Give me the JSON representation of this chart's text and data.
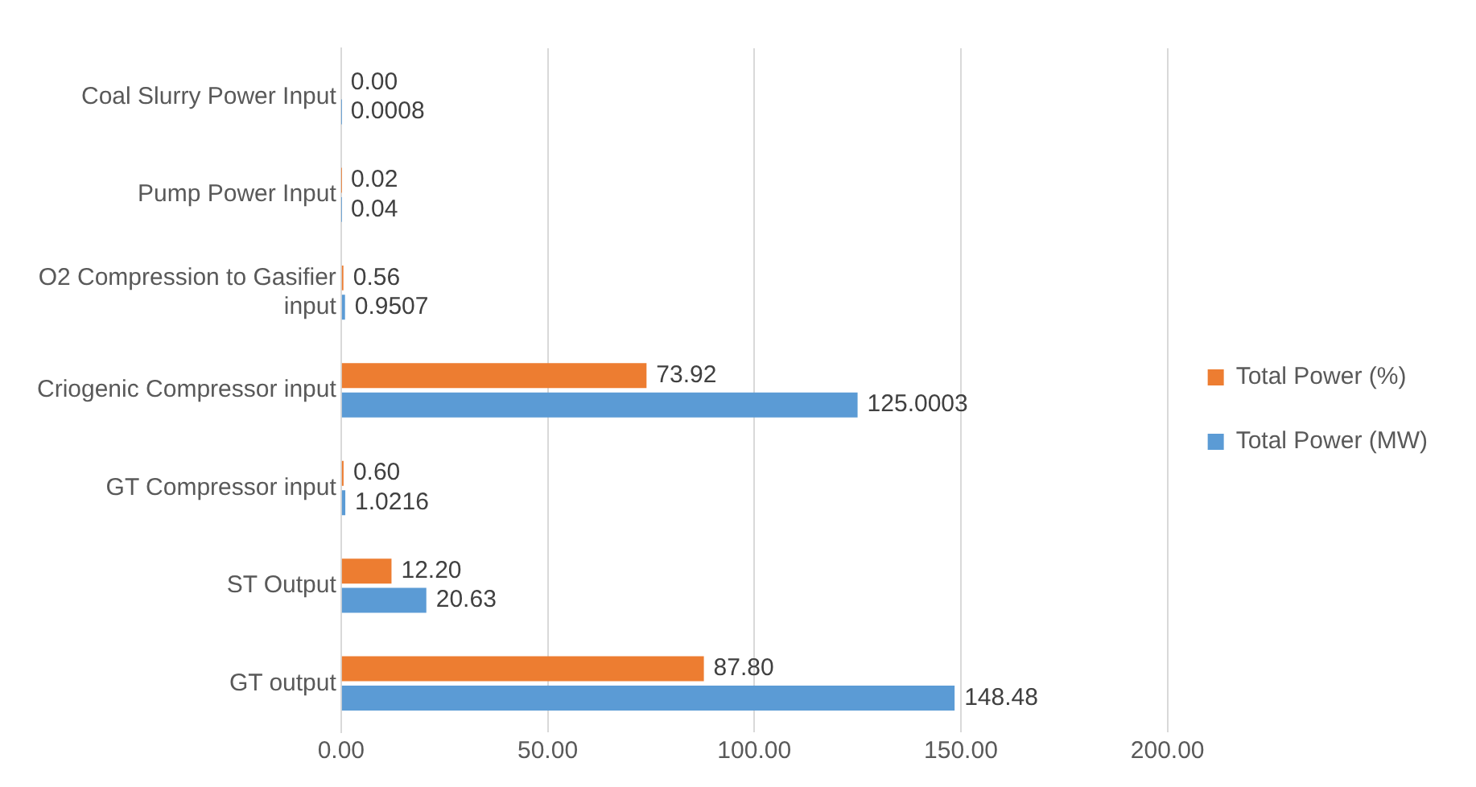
{
  "chart_data": {
    "type": "bar",
    "orientation": "horizontal",
    "categories": [
      "Coal Slurry Power Input",
      "Pump Power Input",
      "O2 Compression to Gasifier input",
      "Criogenic Compressor input",
      "GT Compressor input",
      "ST Output",
      "GT output"
    ],
    "series": [
      {
        "name": "Total Power (%)",
        "color": "#ed7d31",
        "values": [
          0.0,
          0.02,
          0.56,
          73.92,
          0.6,
          12.2,
          87.8
        ],
        "value_labels": [
          "0.00",
          "0.02",
          "0.56",
          "73.92",
          "0.60",
          "12.20",
          "87.80"
        ]
      },
      {
        "name": "Total Power (MW)",
        "color": "#5b9bd5",
        "values": [
          0.0008,
          0.04,
          0.9507,
          125.0003,
          1.0216,
          20.63,
          148.48
        ],
        "value_labels": [
          "0.0008",
          "0.04",
          "0.9507",
          "125.0003",
          "1.0216",
          "20.63",
          "148.48"
        ]
      }
    ],
    "xlim": [
      0,
      200
    ],
    "xticks": [
      {
        "value": 0,
        "label": "0.00"
      },
      {
        "value": 50,
        "label": "50.00"
      },
      {
        "value": 100,
        "label": "100.00"
      },
      {
        "value": 150,
        "label": "150.00"
      },
      {
        "value": 200,
        "label": "200.00"
      }
    ],
    "grid": "x",
    "legend": "right"
  }
}
